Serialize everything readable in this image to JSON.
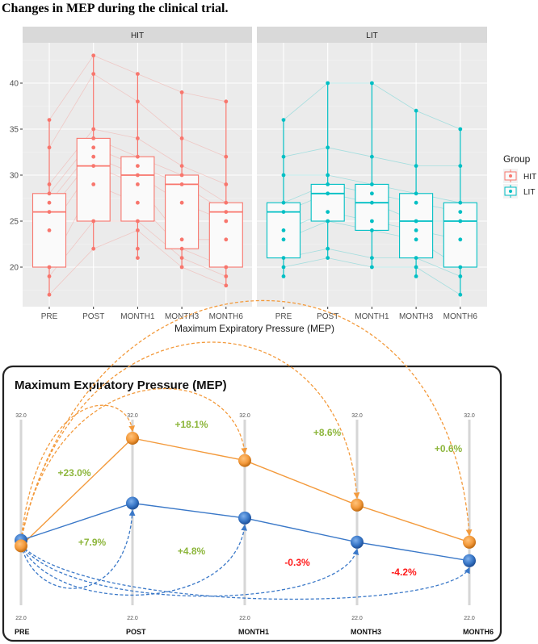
{
  "figure_title": "Changes in MEP during the clinical trial.",
  "colors": {
    "HIT": "#F8766D",
    "LIT": "#00BFC4",
    "orange": "#F39A3C",
    "blue": "#3A78C8",
    "pos": "#8DB63C",
    "neg": "#FF1A1A"
  },
  "chart_data": [
    {
      "type": "box",
      "xlabel": "Maximum Expiratory Pressure (MEP)",
      "ylabel": "",
      "ylim": [
        15.7,
        44.4
      ],
      "yticks": [
        20,
        25,
        30,
        35,
        40
      ],
      "categories": [
        "PRE",
        "POST",
        "MONTH1",
        "MONTH3",
        "MONTH6"
      ],
      "legend": {
        "title": "Group",
        "position": "right",
        "entries": [
          "HIT",
          "LIT"
        ]
      },
      "panels": [
        {
          "name": "HIT",
          "boxes": [
            {
              "q1": 20,
              "median": 26,
              "q3": 28,
              "min": 17,
              "max": 36,
              "points": [
                36,
                33,
                29,
                28,
                27,
                26,
                24,
                20,
                19,
                17
              ]
            },
            {
              "q1": 25,
              "median": 31,
              "q3": 34,
              "min": 22,
              "max": 43,
              "points": [
                43,
                41,
                35,
                34,
                33,
                32,
                31,
                29,
                25,
                22
              ]
            },
            {
              "q1": 25,
              "median": 30,
              "q3": 32,
              "min": 21,
              "max": 41,
              "points": [
                41,
                38,
                34,
                32,
                31,
                30,
                29,
                27,
                25,
                24,
                22,
                21
              ]
            },
            {
              "q1": 22,
              "median": 29,
              "q3": 30,
              "min": 20,
              "max": 39,
              "points": [
                39,
                34,
                31,
                30,
                29,
                27,
                23,
                22,
                21,
                20
              ]
            },
            {
              "q1": 20,
              "median": 26,
              "q3": 27,
              "min": 18,
              "max": 38,
              "points": [
                38,
                32,
                29,
                27,
                26,
                25,
                23,
                20,
                19,
                18
              ]
            }
          ]
        },
        {
          "name": "LIT",
          "boxes": [
            {
              "q1": 21,
              "median": 26,
              "q3": 27,
              "min": 19,
              "max": 36,
              "points": [
                36,
                32,
                30,
                27,
                26,
                24,
                23,
                21,
                20,
                19
              ]
            },
            {
              "q1": 25,
              "median": 28,
              "q3": 29,
              "min": 21,
              "max": 40,
              "points": [
                40,
                33,
                30,
                29,
                28,
                26,
                25,
                22,
                21
              ]
            },
            {
              "q1": 24,
              "median": 27,
              "q3": 29,
              "min": 20,
              "max": 40,
              "points": [
                40,
                32,
                29,
                28,
                27,
                25,
                24,
                21,
                20
              ]
            },
            {
              "q1": 21,
              "median": 25,
              "q3": 28,
              "min": 19,
              "max": 37,
              "points": [
                37,
                31,
                28,
                27,
                25,
                24,
                23,
                21,
                20,
                19
              ]
            },
            {
              "q1": 20,
              "median": 25,
              "q3": 27,
              "min": 17,
              "max": 35,
              "points": [
                35,
                31,
                27,
                26,
                25,
                23,
                20,
                19,
                17
              ]
            }
          ]
        }
      ]
    },
    {
      "type": "line",
      "title": "Maximum Expiratory Pressure (MEP)",
      "categories": [
        "PRE",
        "POST",
        "MONTH1",
        "MONTH3",
        "MONTH6"
      ],
      "axis_top_labels": [
        "32.0",
        "32.0",
        "32.0",
        "32.0",
        "32.0"
      ],
      "axis_bottom_labels": [
        "22.0",
        "22.0",
        "22.0",
        "22.0",
        "22.0"
      ],
      "ylim": [
        22,
        32
      ],
      "series": [
        {
          "name": "HIT",
          "color": "orange",
          "values": [
            25.2,
            31.0,
            29.8,
            27.4,
            25.4
          ],
          "changes_from_pre": [
            "+23.0%",
            "+18.1%",
            "+8.6%",
            "+0.6%"
          ]
        },
        {
          "name": "LIT",
          "color": "blue",
          "values": [
            25.5,
            27.5,
            26.7,
            25.4,
            24.4
          ],
          "changes_from_pre": [
            "+7.9%",
            "+4.8%",
            "-0.3%",
            "-4.2%"
          ]
        }
      ]
    }
  ]
}
